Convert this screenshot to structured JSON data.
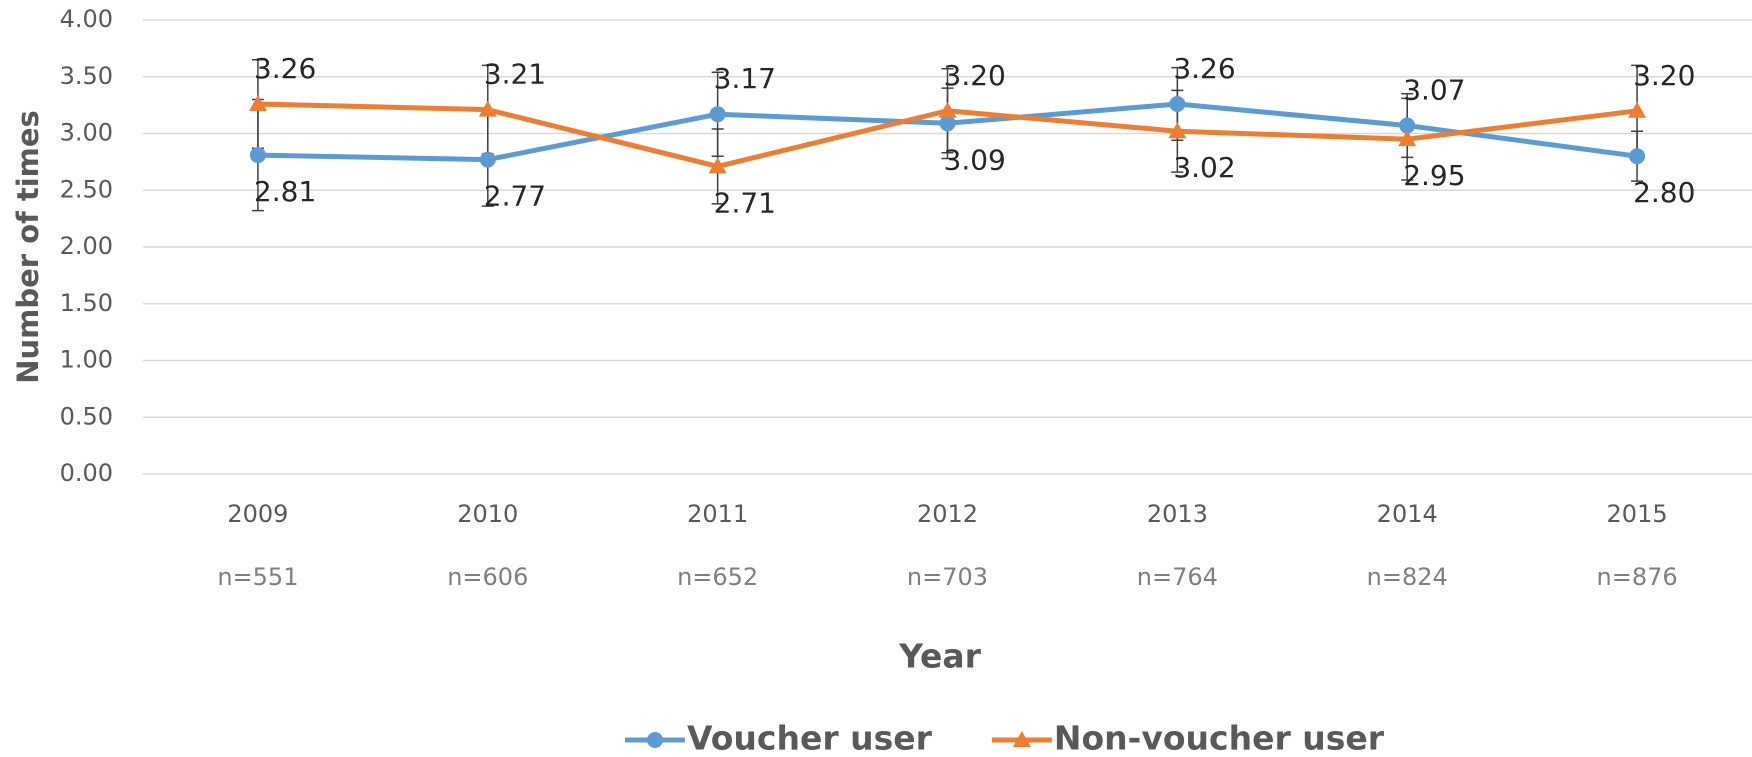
{
  "chart_data": {
    "type": "line",
    "ylabel": "Number of times",
    "xlabel": "Year",
    "categories": [
      "2009",
      "2010",
      "2011",
      "2012",
      "2013",
      "2014",
      "2015"
    ],
    "n_labels": [
      "n=551",
      "n=606",
      "n=652",
      "n=703",
      "n=764",
      "n=824",
      "n=876"
    ],
    "ylim": [
      0,
      4
    ],
    "yticks": [
      {
        "value": 0,
        "label": "0.00"
      },
      {
        "value": 0.5,
        "label": "0.50"
      },
      {
        "value": 1,
        "label": "1.00"
      },
      {
        "value": 1.5,
        "label": "1.50"
      },
      {
        "value": 2,
        "label": "2.00"
      },
      {
        "value": 2.5,
        "label": "2.50"
      },
      {
        "value": 3,
        "label": "3.00"
      },
      {
        "value": 3.5,
        "label": "3.50"
      },
      {
        "value": 4,
        "label": "4.00"
      }
    ],
    "grid": true,
    "legend": "bottom",
    "series": [
      {
        "name": "Voucher user",
        "color": "#5b9bd5",
        "marker": "circle",
        "values": [
          2.81,
          2.77,
          3.17,
          3.09,
          3.26,
          3.07,
          2.8
        ],
        "value_labels": [
          "2.81",
          "2.77",
          "3.17",
          "3.09",
          "3.26",
          "3.07",
          "2.80"
        ],
        "errors": [
          0.49,
          0.41,
          0.37,
          0.31,
          0.32,
          0.28,
          0.22
        ]
      },
      {
        "name": "Non-voucher user",
        "color": "#ed7d31",
        "marker": "triangle",
        "values": [
          3.26,
          3.21,
          2.71,
          3.2,
          3.02,
          2.95,
          3.2
        ],
        "value_labels": [
          "3.26",
          "3.21",
          "2.71",
          "3.20",
          "3.02",
          "2.95",
          "3.20"
        ],
        "errors": [
          0.39,
          0.39,
          0.33,
          0.37,
          0.36,
          0.36,
          0.4
        ]
      }
    ]
  }
}
